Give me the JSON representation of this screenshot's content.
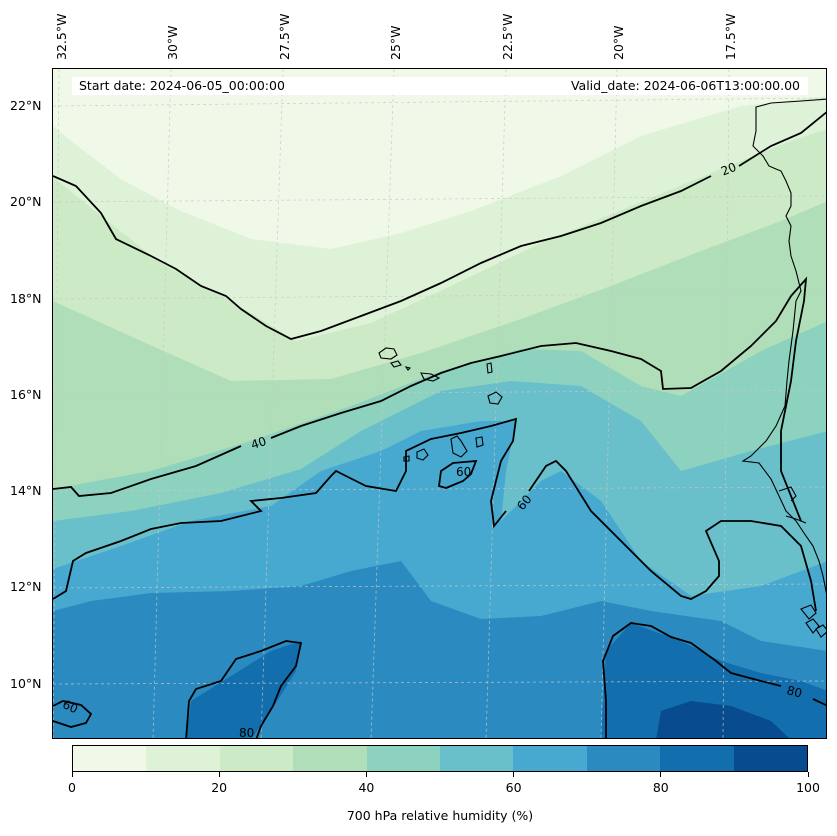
{
  "header": {
    "start_date": "Start date: 2024-06-05_00:00:00",
    "valid_date": "Valid_date: 2024-06-06T13:00:00.00"
  },
  "lon_labels": [
    "32.5°W",
    "30°W",
    "27.5°W",
    "25°W",
    "22.5°W",
    "20°W",
    "17.5°W"
  ],
  "lat_labels": [
    "22°N",
    "20°N",
    "18°N",
    "16°N",
    "14°N",
    "12°N",
    "10°N"
  ],
  "contour_labels": [
    "20",
    "40",
    "60",
    "60",
    "60",
    "80",
    "80"
  ],
  "colorbar": {
    "title": "700 hPa relative humidity (%)",
    "ticks": [
      "0",
      "20",
      "40",
      "60",
      "80",
      "100"
    ],
    "range": [
      0,
      100
    ],
    "levels": [
      0,
      10,
      20,
      30,
      40,
      50,
      60,
      70,
      80,
      90,
      100
    ],
    "colors": [
      "#f0f9e8",
      "#def2d8",
      "#cbeac5",
      "#afdeb8",
      "#8dd2bf",
      "#69bfca",
      "#47a8d0",
      "#2b8bc0",
      "#136eae",
      "#084c8f"
    ]
  },
  "map_extent": {
    "lon": [
      -32.7,
      -15.5
    ],
    "lat": [
      8.9,
      22.8
    ]
  },
  "colors": {
    "land_outline": "#000000",
    "contour_line": "#000000",
    "gridline": "#c8c8c8"
  }
}
